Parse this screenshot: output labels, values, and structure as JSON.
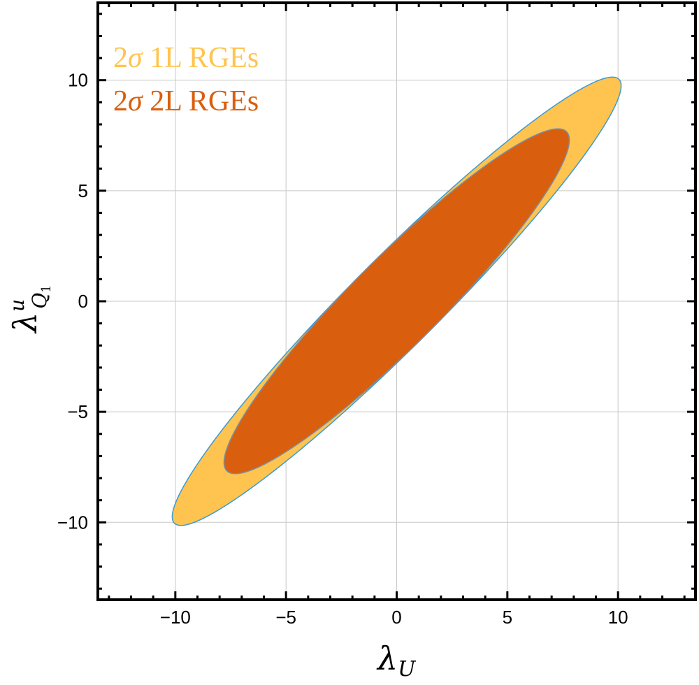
{
  "chart_data": {
    "type": "area",
    "title": "",
    "xlabel": {
      "main": "λ",
      "sub": "U"
    },
    "ylabel": {
      "main": "λ",
      "sup": "u",
      "sub": "Q",
      "sub2": "1"
    },
    "xlim": [
      -13.5,
      13.5
    ],
    "ylim": [
      -13.5,
      13.5
    ],
    "grid": true,
    "xticks": [
      -10,
      -5,
      0,
      5,
      10
    ],
    "yticks": [
      -10,
      -5,
      0,
      5,
      10
    ],
    "xtick_labels": [
      "−10",
      "−5",
      "0",
      "5",
      "10"
    ],
    "ytick_labels": [
      "−10",
      "−5",
      "0",
      "5",
      "10"
    ],
    "legend_position": "top-left",
    "series": [
      {
        "name": "2σ 1L RGEs",
        "label": {
          "prefix": "2",
          "sigma": "σ",
          "rest": " 1L RGEs"
        },
        "color": "#FFC44F",
        "edge_color": "#3A9BD0",
        "shape": "ellipse",
        "center": [
          0,
          0
        ],
        "major_axis_direction_deg": 45,
        "semi_major": 14.2,
        "semi_minor": 2.0
      },
      {
        "name": "2σ 2L RGEs",
        "label": {
          "prefix": "2",
          "sigma": "σ",
          "rest": " 2L RGEs"
        },
        "color": "#D95F0E",
        "edge_color": "#7A8FA6",
        "shape": "ellipse",
        "center": [
          0,
          0
        ],
        "major_axis_direction_deg": 45,
        "semi_major": 10.85,
        "semi_minor": 2.0
      }
    ]
  }
}
